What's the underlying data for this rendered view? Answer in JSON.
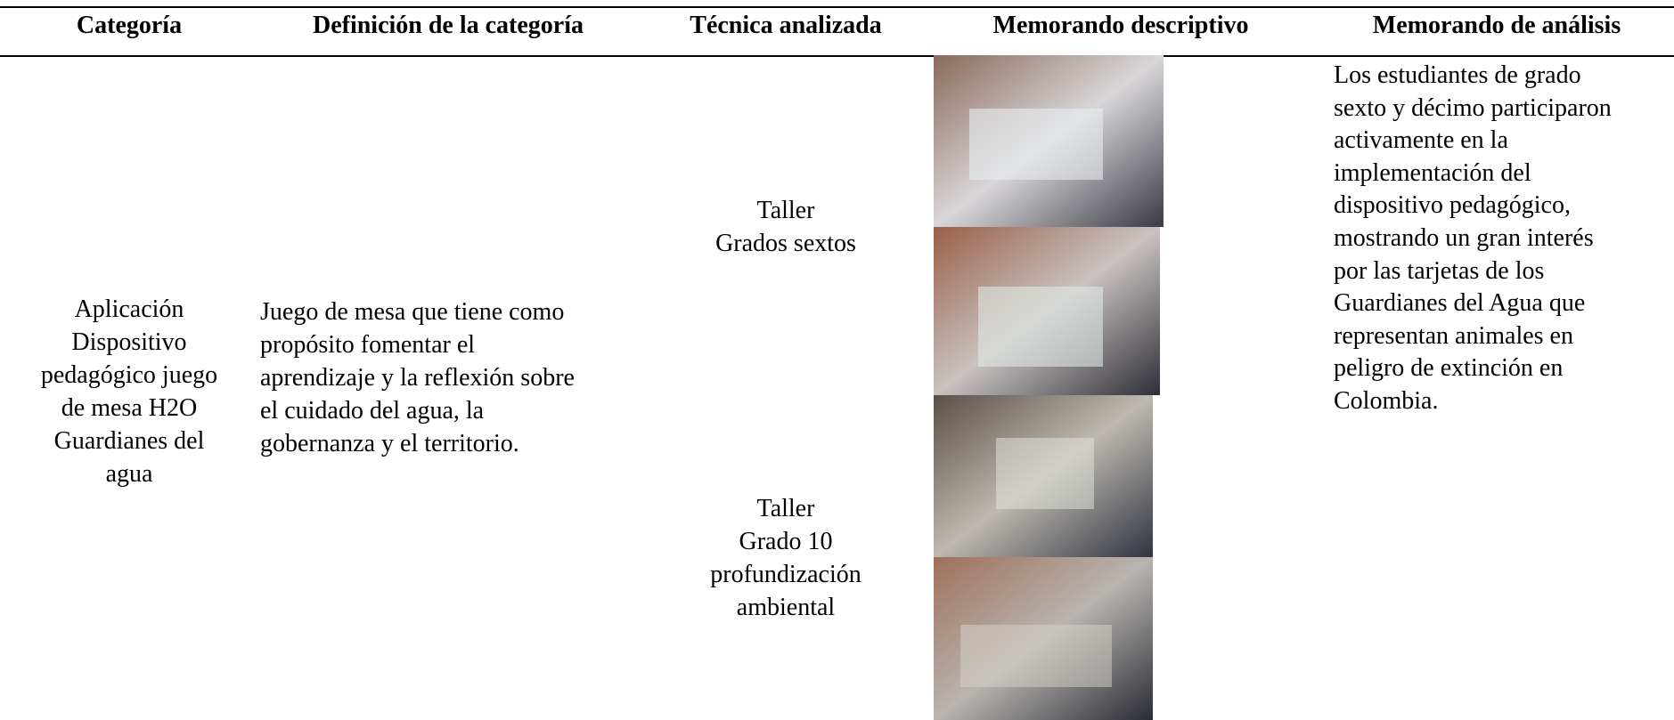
{
  "table": {
    "headers": [
      "Categoría",
      "Definición de la categoría",
      "Técnica analizada",
      "Memorando descriptivo",
      "Memorando de análisis"
    ],
    "row": {
      "category": [
        "Aplicación",
        "Dispositivo",
        "pedagógico juego",
        "de mesa H2O",
        "Guardianes del",
        "agua"
      ],
      "definition": [
        "Juego de mesa que tiene como",
        "propósito fomentar el",
        "aprendizaje y la reflexión sobre",
        "el cuidado del agua, la",
        "gobernanza y el territorio."
      ],
      "techniques": [
        [
          "Taller",
          "Grados sextos"
        ],
        [
          "Taller",
          "Grado 10",
          "profundización",
          "ambiental"
        ]
      ],
      "analysis": [
        "Los estudiantes de grado",
        "sexto y décimo participaron",
        "activamente en la",
        "implementación del",
        "dispositivo pedagógico,",
        "mostrando un gran interés",
        "por las tarjetas de los",
        "Guardianes del Agua que",
        "representan animales en",
        "peligro de extinción en",
        "Colombia."
      ]
    }
  }
}
